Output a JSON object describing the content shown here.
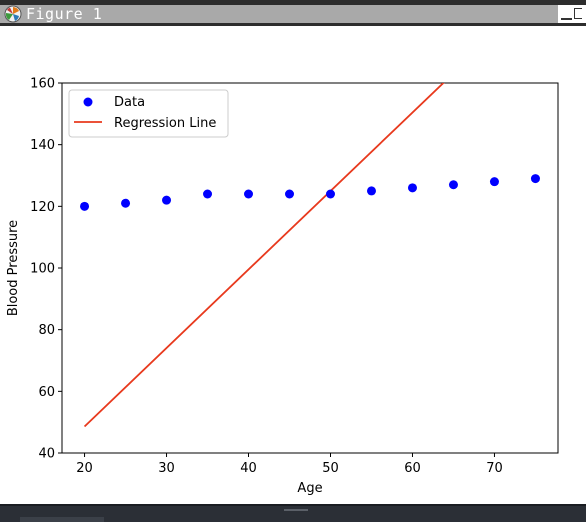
{
  "window": {
    "title": "Figure 1",
    "icon": "matplotlib-logo-icon"
  },
  "chart_data": {
    "type": "scatter",
    "xlabel": "Age",
    "ylabel": "Blood Pressure",
    "xlim": [
      17.25,
      77.75
    ],
    "ylim": [
      40,
      160
    ],
    "xticks": [
      20,
      30,
      40,
      50,
      60,
      70
    ],
    "yticks": [
      40,
      60,
      80,
      100,
      120,
      140,
      160
    ],
    "legend_position": "upper-left",
    "grid": false,
    "series": [
      {
        "name": "Data",
        "kind": "scatter",
        "color": "#0000ff",
        "x": [
          20,
          25,
          30,
          35,
          40,
          45,
          50,
          55,
          60,
          65,
          70,
          75
        ],
        "y": [
          120,
          121,
          122,
          124,
          124,
          124,
          124,
          125,
          126,
          127,
          128,
          129
        ]
      },
      {
        "name": "Regression Line",
        "kind": "line",
        "color": "#e8391d",
        "x": [
          20,
          75
        ],
        "y": [
          48.6,
          188.6
        ]
      }
    ]
  }
}
